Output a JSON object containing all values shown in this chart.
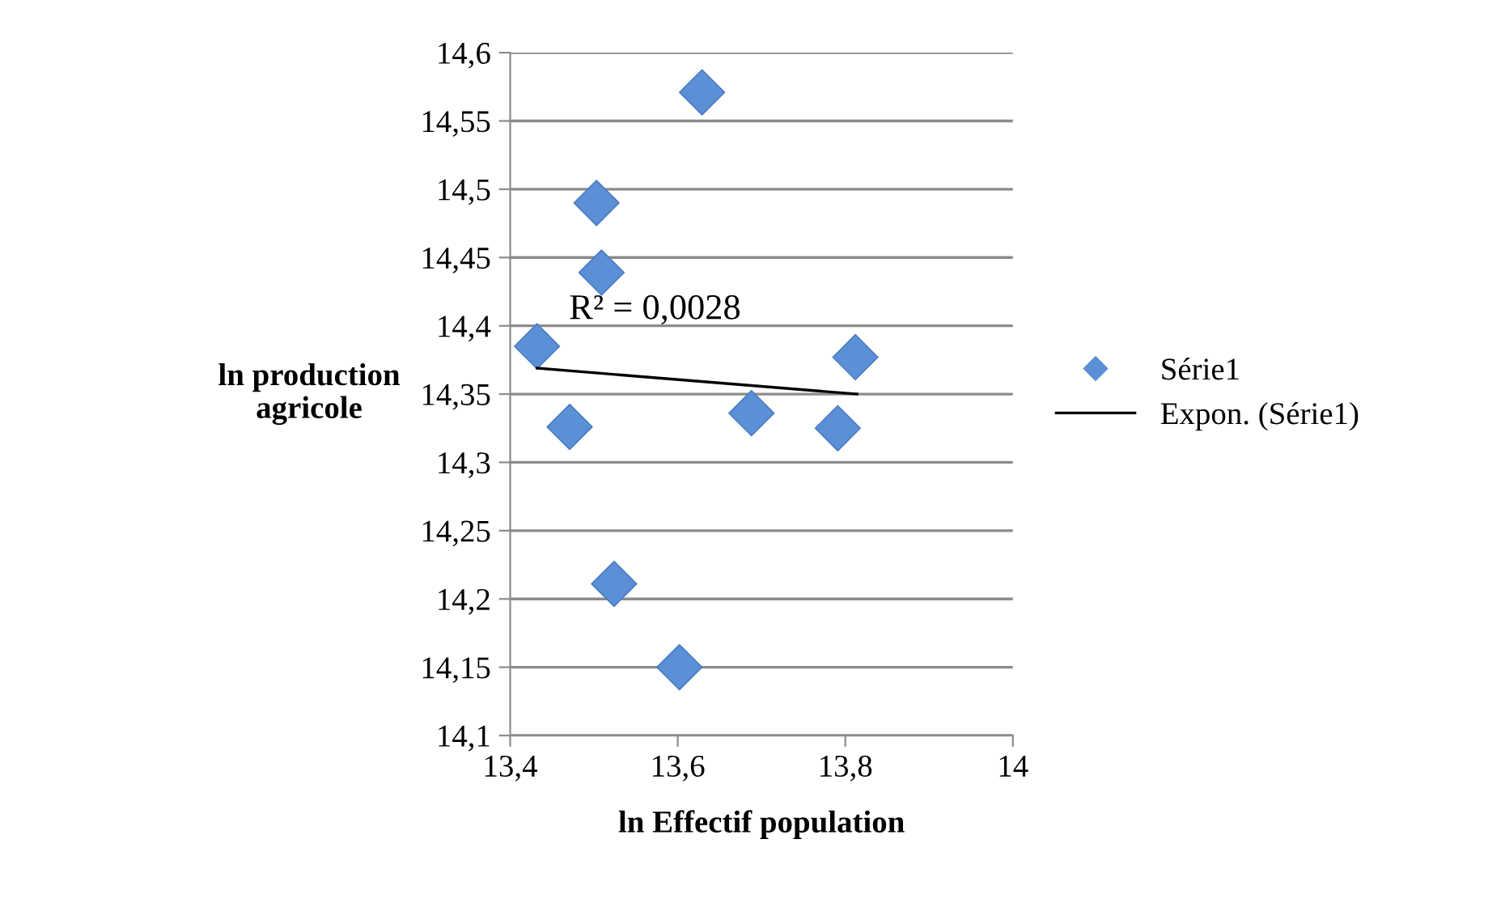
{
  "chart_data": {
    "type": "scatter",
    "xlabel": "ln Effectif population",
    "ylabel": "ln production\nagricole",
    "series": [
      {
        "name": "Série1",
        "color": "#5b8fd6",
        "marker": "diamond",
        "x": [
          13.432,
          13.471,
          13.503,
          13.509,
          13.524,
          13.602,
          13.629,
          13.688,
          13.791,
          13.812
        ],
        "values": [
          14.385,
          14.326,
          14.49,
          14.439,
          14.211,
          14.15,
          14.571,
          14.336,
          14.325,
          14.377
        ]
      },
      {
        "name": "Expon. (Série1)",
        "type": "line",
        "color": "#000000",
        "marker": "none",
        "line_style": "solid",
        "x": [
          13.432,
          13.814
        ],
        "values": [
          14.369,
          14.35
        ]
      }
    ],
    "annotations": [
      "R² = 0,0028"
    ],
    "xlim": [
      13.4,
      14
    ],
    "ylim": [
      14.1,
      14.6
    ],
    "xticks": [
      {
        "value": 13.4,
        "label": "13,4"
      },
      {
        "value": 13.6,
        "label": "13,6"
      },
      {
        "value": 13.8,
        "label": "13,8"
      },
      14
    ],
    "yticks": [
      {
        "value": 14.1,
        "label": "14,1"
      },
      {
        "value": 14.15,
        "label": "14,15"
      },
      {
        "value": 14.2,
        "label": "14,2"
      },
      {
        "value": 14.25,
        "label": "14,25"
      },
      {
        "value": 14.3,
        "label": "14,3"
      },
      {
        "value": 14.35,
        "label": "14,35"
      },
      {
        "value": 14.4,
        "label": "14,4"
      },
      {
        "value": 14.45,
        "label": "14,45"
      },
      {
        "value": 14.5,
        "label": "14,5"
      },
      {
        "value": 14.55,
        "label": "14,55"
      },
      {
        "value": 14.6,
        "label": "14,6"
      }
    ],
    "grid": "y",
    "legend": "right"
  }
}
